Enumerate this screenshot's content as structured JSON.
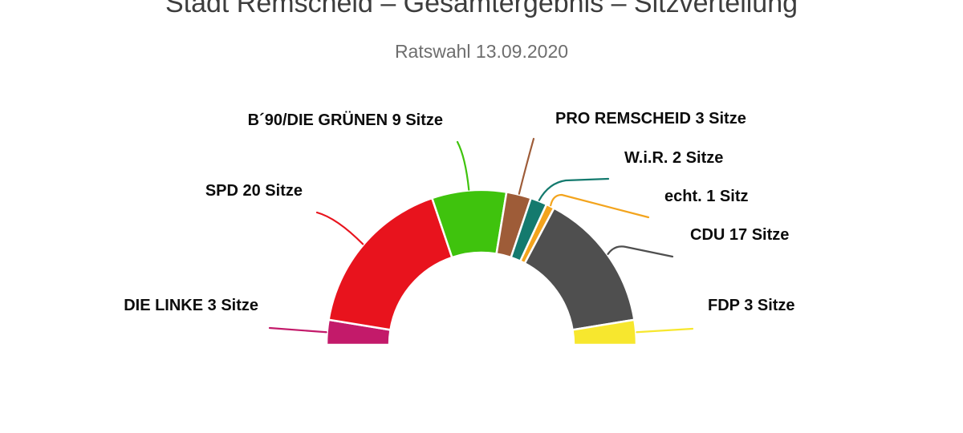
{
  "page": {
    "title": "Stadt Remscheid – Gesamtergebnis – Sitzverteilung",
    "subtitle": "Ratswahl 13.09.2020"
  },
  "chart_data": {
    "type": "pie",
    "variant": "half-donut-seat-arch",
    "title": "Stadt Remscheid – Gesamtergebnis – Sitzverteilung",
    "subtitle": "Ratswahl 13.09.2020",
    "unit": "Sitze",
    "total_seats": 58,
    "legend_position": "none",
    "background_color": "#ffffff",
    "separator_color": "#ffffff",
    "series": [
      {
        "name": "DIE LINKE",
        "seats": 3,
        "label": "DIE LINKE 3 Sitze",
        "color": "#c31a6a"
      },
      {
        "name": "SPD",
        "seats": 20,
        "label": "SPD 20 Sitze",
        "color": "#e8131d"
      },
      {
        "name": "B´90/DIE GRÜNEN",
        "seats": 9,
        "label": "B´90/DIE GRÜNEN 9 Sitze",
        "color": "#3fc30d"
      },
      {
        "name": "PRO REMSCHEID",
        "seats": 3,
        "label": "PRO REMSCHEID 3 Sitze",
        "color": "#9e5c38"
      },
      {
        "name": "W.i.R.",
        "seats": 2,
        "label": "W.i.R. 2 Sitze",
        "color": "#147a6e"
      },
      {
        "name": "echt.",
        "seats": 1,
        "label": "echt. 1 Sitz",
        "color": "#f3a41d"
      },
      {
        "name": "CDU",
        "seats": 17,
        "label": "CDU 17 Sitze",
        "color": "#4f4f4f"
      },
      {
        "name": "FDP",
        "seats": 3,
        "label": "FDP 3 Sitze",
        "color": "#f7e72e"
      }
    ]
  }
}
